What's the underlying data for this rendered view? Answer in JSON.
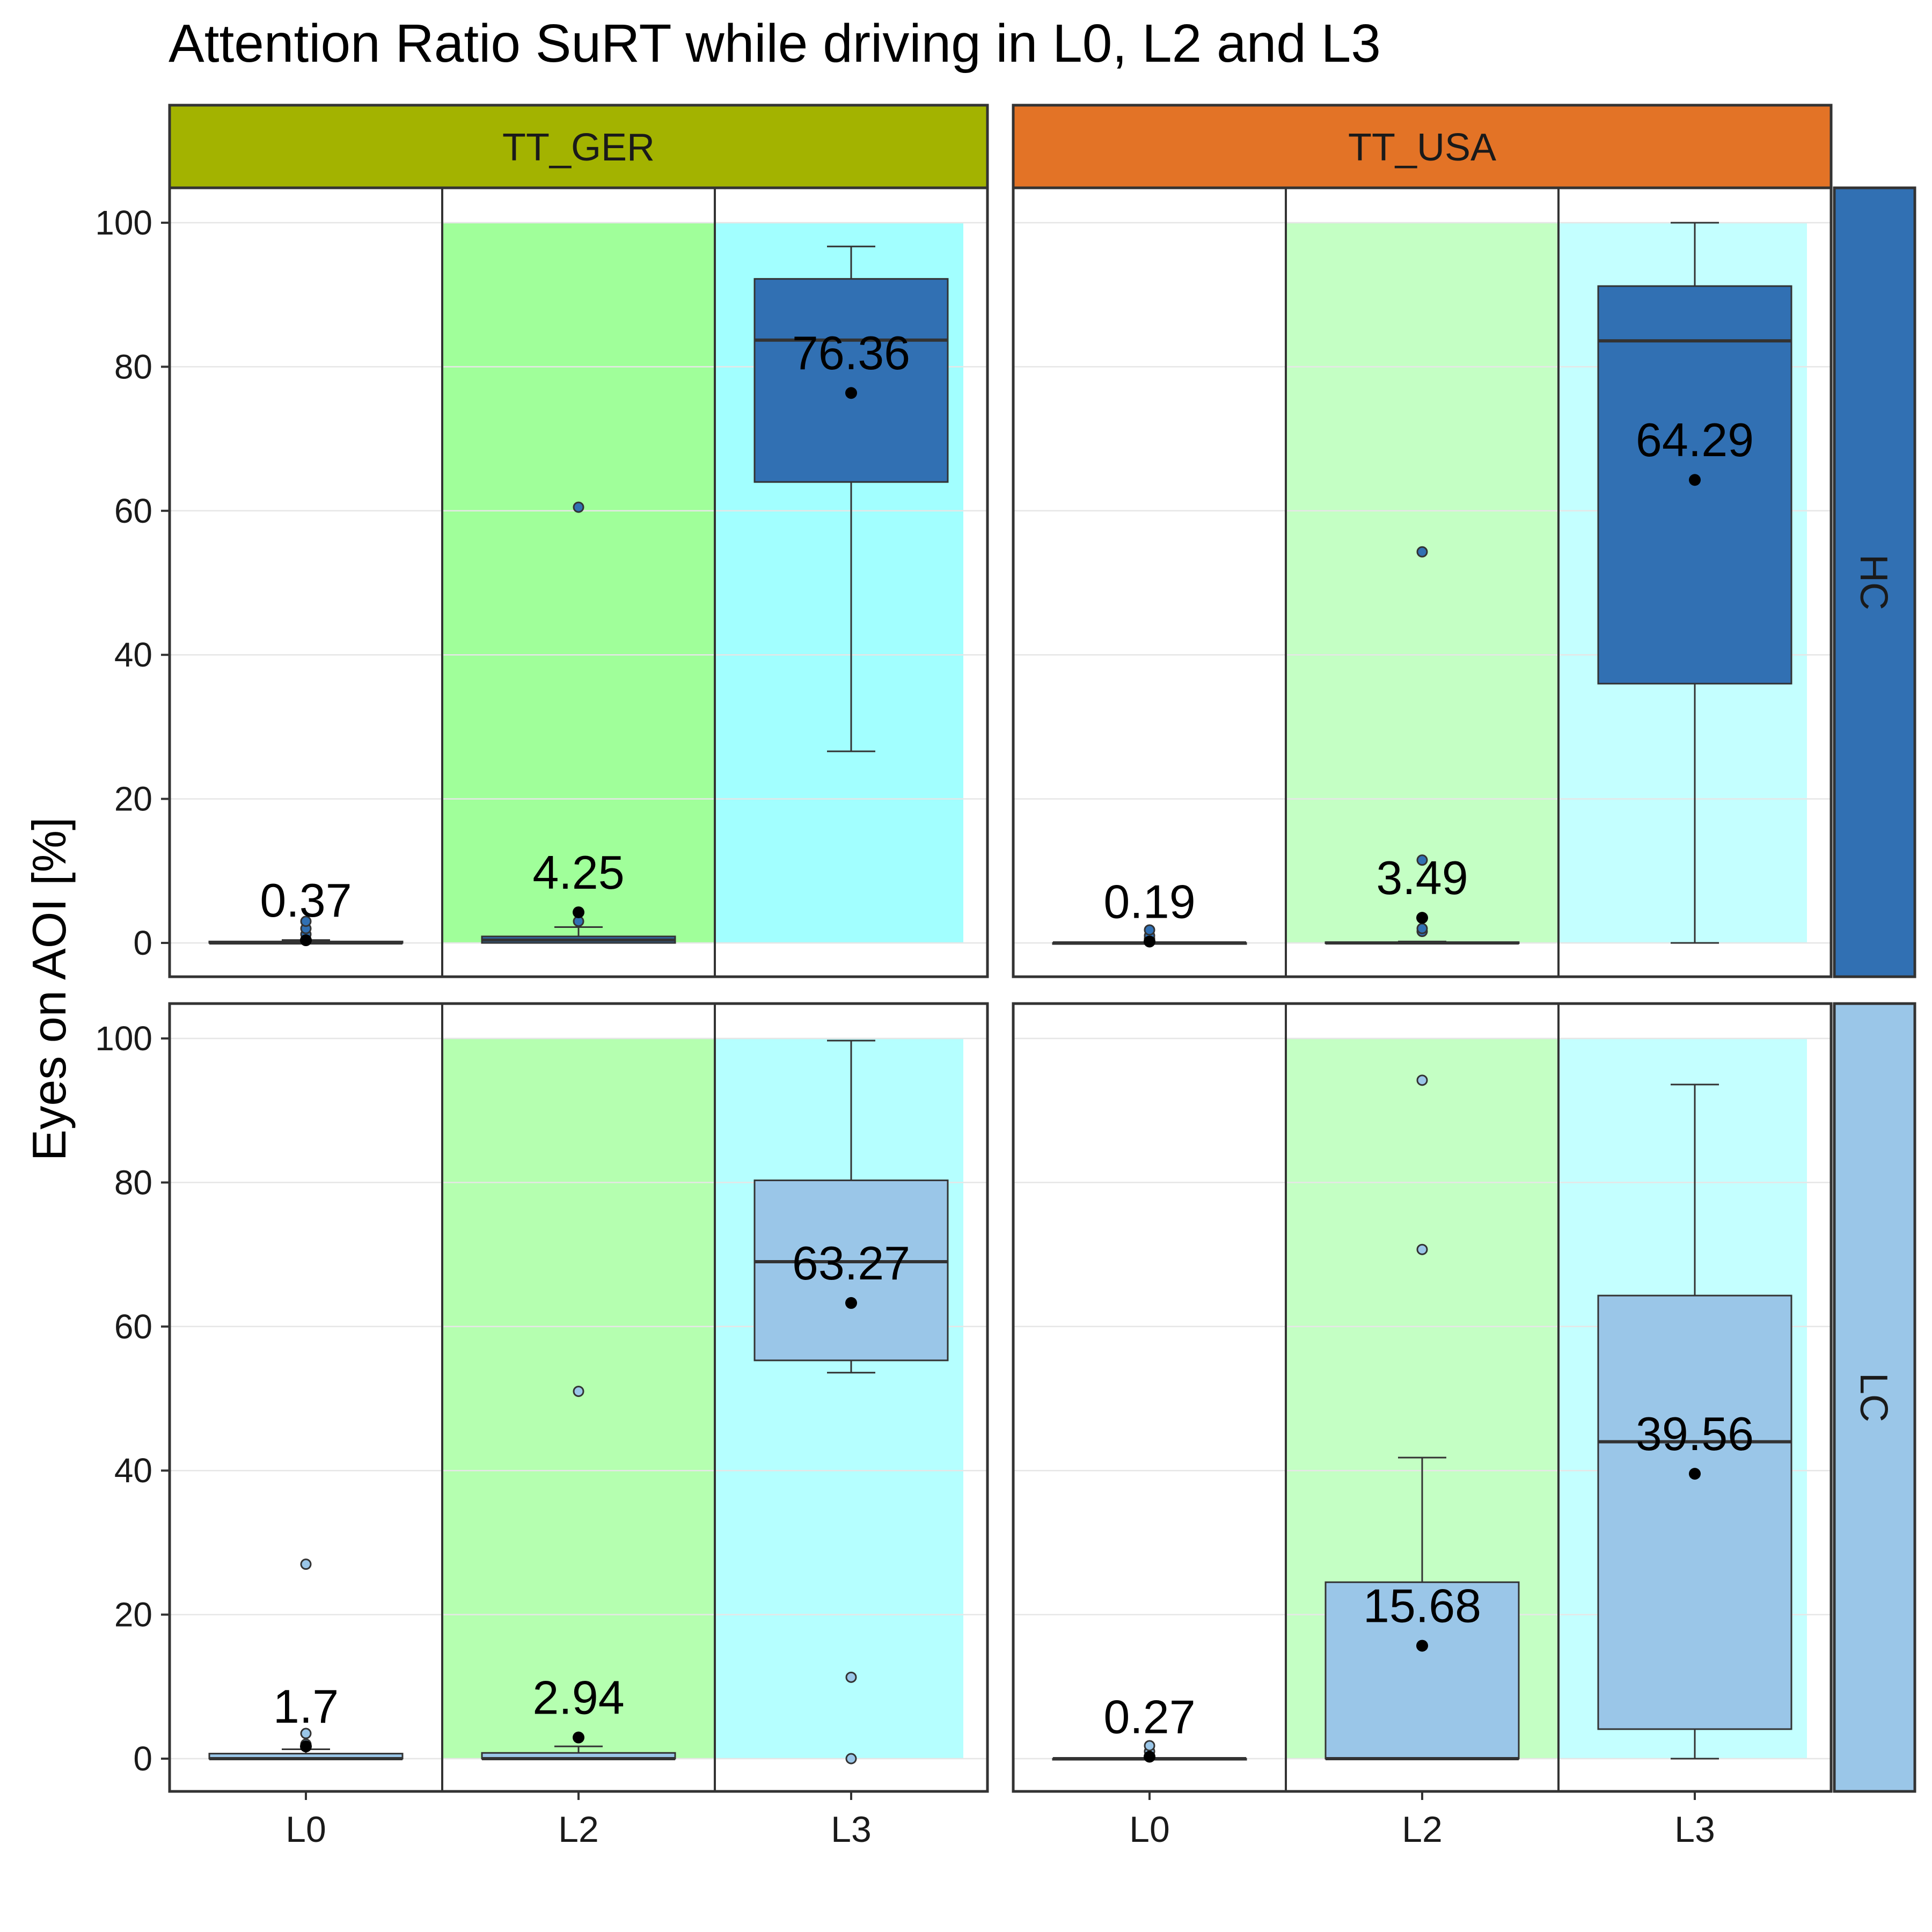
{
  "chart_data": {
    "type": "boxplot",
    "title": "Attention Ratio SuRT while driving in L0, L2 and L3",
    "xlabel": "",
    "ylabel": "Eyes on AOI [%]",
    "ylim": [
      -5,
      105
    ],
    "yticks": [
      0,
      20,
      40,
      60,
      80,
      100
    ],
    "categories": [
      "L0",
      "L2",
      "L3"
    ],
    "grid": true,
    "col_facets": [
      {
        "label": "TT_GER",
        "color": "#A3B300"
      },
      {
        "label": "TT_USA",
        "color": "#E37326"
      }
    ],
    "row_facets": [
      {
        "label": "HC",
        "color": "#3170B3",
        "box_fill": "#3170B3"
      },
      {
        "label": "LC",
        "color": "#9AC6E8",
        "box_fill": "#9AC6E8"
      }
    ],
    "background_bands": [
      {
        "category": "L2",
        "ymin": 0,
        "ymax": 100,
        "colors": [
          "#A0FF9A",
          "#C4FFC4",
          "#B5FFB0",
          "#C4FFC4"
        ]
      },
      {
        "category": "L3",
        "ymin": 0,
        "ymax": 100,
        "colors": [
          "#A2FFFF",
          "#C4FFFF",
          "#B5FFFF",
          "#C4FFFF"
        ]
      }
    ],
    "panels": [
      {
        "col": "TT_GER",
        "row": "HC",
        "groups": [
          {
            "category": "L0",
            "q1": 0,
            "median": 0,
            "q3": 0.2,
            "whisker_low": 0,
            "whisker_high": 0.4,
            "outliers": [
              1.2,
              2.0,
              3.0
            ],
            "mean": 0.37,
            "mean_label": "0.37"
          },
          {
            "category": "L2",
            "q1": 0,
            "median": 0.4,
            "q3": 0.9,
            "whisker_low": 0,
            "whisker_high": 2.2,
            "outliers": [
              3.0,
              60.5
            ],
            "mean": 4.25,
            "mean_label": "4.25"
          },
          {
            "category": "L3",
            "q1": 64,
            "median": 83.7,
            "q3": 92.2,
            "whisker_low": 26.6,
            "whisker_high": 96.7,
            "outliers": [],
            "mean": 76.36,
            "mean_label": "76.36"
          }
        ]
      },
      {
        "col": "TT_USA",
        "row": "HC",
        "groups": [
          {
            "category": "L0",
            "q1": 0,
            "median": 0,
            "q3": 0,
            "whisker_low": 0,
            "whisker_high": 0,
            "outliers": [
              0.6,
              1.0,
              1.8
            ],
            "mean": 0.19,
            "mean_label": "0.19"
          },
          {
            "category": "L2",
            "q1": 0,
            "median": 0,
            "q3": 0.1,
            "whisker_low": 0,
            "whisker_high": 0.2,
            "outliers": [
              1.6,
              2.0,
              11.5,
              54.3
            ],
            "mean": 3.49,
            "mean_label": "3.49"
          },
          {
            "category": "L3",
            "q1": 36,
            "median": 83.6,
            "q3": 91.2,
            "whisker_low": 0,
            "whisker_high": 100,
            "outliers": [],
            "mean": 64.29,
            "mean_label": "64.29"
          }
        ]
      },
      {
        "col": "TT_GER",
        "row": "LC",
        "groups": [
          {
            "category": "L0",
            "q1": 0,
            "median": 0,
            "q3": 0.7,
            "whisker_low": 0,
            "whisker_high": 1.3,
            "outliers": [
              2.0,
              3.5,
              27.0
            ],
            "mean": 1.7,
            "mean_label": "1.7"
          },
          {
            "category": "L2",
            "q1": 0,
            "median": 0,
            "q3": 0.8,
            "whisker_low": 0,
            "whisker_high": 1.7,
            "outliers": [
              51.0
            ],
            "mean": 2.94,
            "mean_label": "2.94"
          },
          {
            "category": "L3",
            "q1": 55.3,
            "median": 69.0,
            "q3": 80.3,
            "whisker_low": 53.6,
            "whisker_high": 99.7,
            "outliers": [
              0.0,
              11.3
            ],
            "mean": 63.27,
            "mean_label": "63.27"
          }
        ]
      },
      {
        "col": "TT_USA",
        "row": "LC",
        "groups": [
          {
            "category": "L0",
            "q1": 0,
            "median": 0,
            "q3": 0,
            "whisker_low": 0,
            "whisker_high": 0,
            "outliers": [
              1.0,
              1.8
            ],
            "mean": 0.27,
            "mean_label": "0.27"
          },
          {
            "category": "L2",
            "q1": 0,
            "median": 0,
            "q3": 24.5,
            "whisker_low": 0,
            "whisker_high": 41.8,
            "outliers": [
              70.7,
              94.2
            ],
            "mean": 15.68,
            "mean_label": "15.68"
          },
          {
            "category": "L3",
            "q1": 4.1,
            "median": 44.0,
            "q3": 64.3,
            "whisker_low": 0,
            "whisker_high": 93.6,
            "outliers": [],
            "mean": 39.56,
            "mean_label": "39.56"
          }
        ]
      }
    ]
  }
}
